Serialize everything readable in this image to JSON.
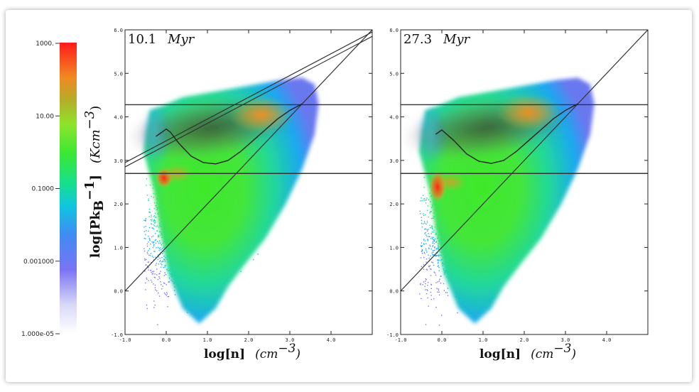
{
  "colorbar": {
    "ticks": [
      "1000.",
      "10.00",
      "0.1000",
      "0.001000",
      "1.000e-05"
    ]
  },
  "ylabel": {
    "main": "log[Pk",
    "sub": "B",
    "sup": "−1",
    "close": "]",
    "unit": "(Kcm",
    "unit_sup": "−3",
    "unit_close": ")"
  },
  "chart_data": [
    {
      "type": "heatmap",
      "title": "10.1",
      "title_unit": "Myr",
      "xlabel": "log[n]",
      "xlabel_unit": "(cm",
      "xlabel_unit_sup": "−3",
      "xlabel_unit_close": ")",
      "xlim": [
        -1.0,
        5.0
      ],
      "ylim": [
        -1.0,
        6.0
      ],
      "xticks": [
        "-1.0",
        "0.0",
        "1.0",
        "2.0",
        "3.0",
        "4.0"
      ],
      "yticks": [
        "-1.0",
        "0.0",
        "1.0",
        "2.0",
        "3.0",
        "4.0",
        "5.0",
        "6.0"
      ],
      "hlines": [
        4.28,
        2.7
      ],
      "diag_lines": [
        {
          "x": [
            -1.0,
            5.0
          ],
          "y": [
            0.0,
            6.0
          ]
        },
        {
          "x": [
            -1.0,
            5.0
          ],
          "y": [
            2.85,
            5.85
          ]
        },
        {
          "x": [
            -1.0,
            5.0
          ],
          "y": [
            2.95,
            5.95
          ]
        }
      ],
      "equilibrium_curve": {
        "x": [
          -0.25,
          -0.1,
          0.0,
          0.1,
          0.3,
          0.6,
          0.9,
          1.2,
          1.5,
          1.8,
          2.1,
          2.4,
          2.7,
          3.0,
          3.3
        ],
        "y": [
          3.55,
          3.65,
          3.72,
          3.65,
          3.4,
          3.1,
          2.95,
          2.92,
          3.0,
          3.2,
          3.45,
          3.7,
          3.95,
          4.15,
          4.3
        ]
      },
      "peak_region": {
        "x": 2.3,
        "y": 4.05
      },
      "hot_spot": {
        "x": -0.05,
        "y": 2.6
      }
    },
    {
      "type": "heatmap",
      "title": "27.3",
      "title_unit": "Myr",
      "xlabel": "log[n]",
      "xlabel_unit": "(cm",
      "xlabel_unit_sup": "−3",
      "xlabel_unit_close": ")",
      "xlim": [
        -1.0,
        5.0
      ],
      "ylim": [
        -1.0,
        6.0
      ],
      "xticks": [
        "-1.0",
        "0.0",
        "1.0",
        "2.0",
        "3.0",
        "4.0"
      ],
      "yticks": [
        "-1.0",
        "0.0",
        "1.0",
        "2.0",
        "3.0",
        "4.0",
        "5.0",
        "6.0"
      ],
      "hlines": [
        4.28,
        2.7
      ],
      "diag_lines": [
        {
          "x": [
            -1.0,
            5.0
          ],
          "y": [
            0.0,
            6.0
          ]
        }
      ],
      "equilibrium_curve": {
        "x": [
          -0.15,
          0.0,
          0.3,
          0.6,
          0.9,
          1.2,
          1.5,
          1.8,
          2.1,
          2.4,
          2.7,
          3.0,
          3.3
        ],
        "y": [
          3.6,
          3.7,
          3.45,
          3.15,
          2.98,
          2.93,
          3.0,
          3.2,
          3.45,
          3.7,
          3.95,
          4.15,
          4.3
        ]
      },
      "peak_region": {
        "x": 2.1,
        "y": 4.1
      },
      "hot_spot": {
        "x": -0.1,
        "y": 2.4
      }
    }
  ]
}
